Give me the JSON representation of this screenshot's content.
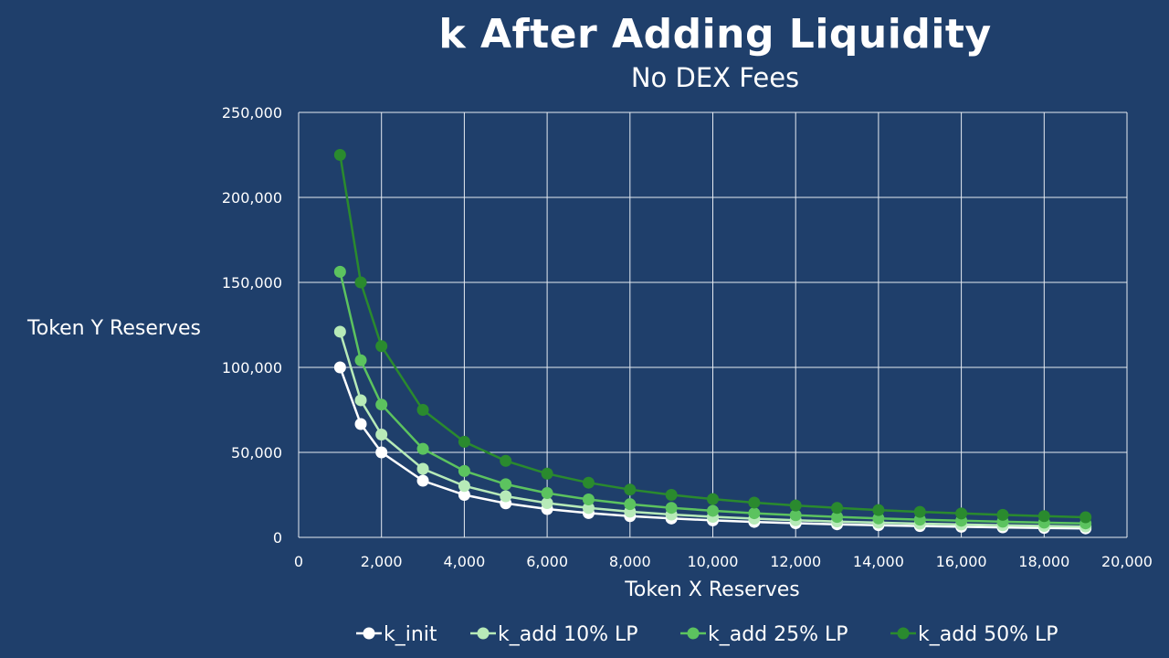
{
  "chart_data": {
    "type": "line",
    "title": "k After Adding Liquidity",
    "subtitle": "No DEX Fees",
    "xlabel": "Token X Reserves",
    "ylabel": "Token Y Reserves",
    "xlim": [
      0,
      20000
    ],
    "ylim": [
      0,
      250000
    ],
    "x_ticks": [
      "0",
      "2,000",
      "4,000",
      "6,000",
      "8,000",
      "10,000",
      "12,000",
      "14,000",
      "16,000",
      "18,000",
      "20,000"
    ],
    "y_ticks": [
      "0",
      "50,000",
      "100,000",
      "150,000",
      "200,000",
      "250,000"
    ],
    "grid": true,
    "legend_position": "bottom",
    "x": [
      1000,
      1500,
      2000,
      3000,
      4000,
      5000,
      6000,
      7000,
      8000,
      9000,
      10000,
      11000,
      12000,
      13000,
      14000,
      15000,
      16000,
      17000,
      18000,
      19000
    ],
    "series": [
      {
        "name": "k_init",
        "color": "#ffffff",
        "values": [
          100000,
          66667,
          50000,
          33333,
          25000,
          20000,
          16667,
          14286,
          12500,
          11111,
          10000,
          9091,
          8333,
          7692,
          7143,
          6667,
          6250,
          5882,
          5556,
          5263
        ]
      },
      {
        "name": "k_add 10% LP",
        "color": "#b7eab8",
        "values": [
          121000,
          80667,
          60500,
          40333,
          30250,
          24200,
          20167,
          17286,
          15125,
          13444,
          12100,
          11000,
          10083,
          9308,
          8643,
          8067,
          7563,
          7118,
          6722,
          6368
        ]
      },
      {
        "name": "k_add 25% LP",
        "color": "#5cc35f",
        "values": [
          156250,
          104167,
          78125,
          52083,
          39063,
          31250,
          26042,
          22321,
          19531,
          17361,
          15625,
          14205,
          13021,
          12019,
          11161,
          10417,
          9766,
          9191,
          8681,
          8224
        ]
      },
      {
        "name": "k_add 50% LP",
        "color": "#2a8a2e",
        "values": [
          225000,
          150000,
          112500,
          75000,
          56250,
          45000,
          37500,
          32143,
          28125,
          25000,
          22500,
          20455,
          18750,
          17308,
          16071,
          15000,
          14063,
          13235,
          12500,
          11842
        ]
      }
    ]
  }
}
